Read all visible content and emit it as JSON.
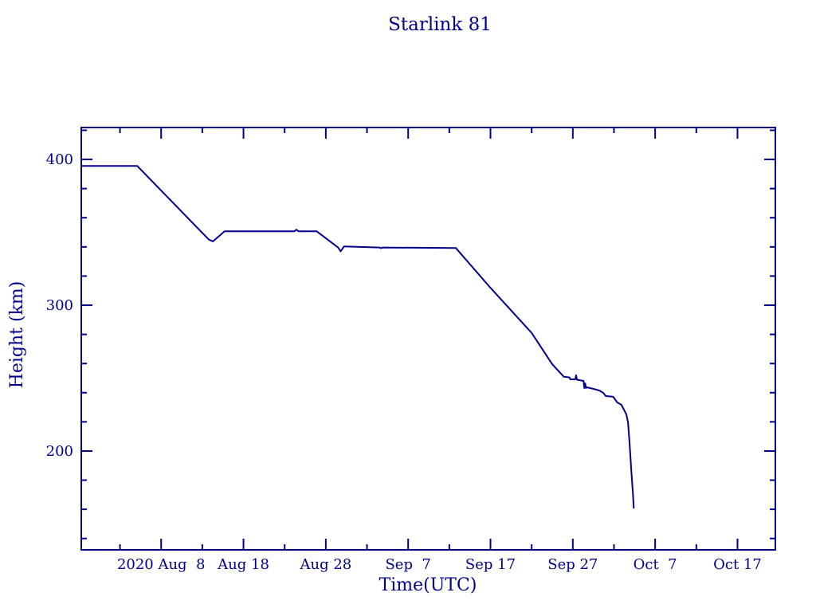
{
  "page": {
    "background": "#ffffff",
    "accent_color": "#00008b"
  },
  "chart_data": {
    "type": "line",
    "title": "Starlink 81",
    "xlabel": "Time(UTC)",
    "ylabel": "Height (km)",
    "line_color": "#00008b",
    "grid": false,
    "legend": "none",
    "x_unit": "days relative to 2020 Aug 8",
    "xlim": [
      -9.7,
      74.6
    ],
    "ylim": [
      132.2,
      421.9
    ],
    "x_major_ticks": [
      {
        "day": 0,
        "label": "2020 Aug  8"
      },
      {
        "day": 10,
        "label": "Aug 18"
      },
      {
        "day": 20,
        "label": "Aug 28"
      },
      {
        "day": 30,
        "label": "Sep  7"
      },
      {
        "day": 40,
        "label": "Sep 17"
      },
      {
        "day": 50,
        "label": "Sep 27"
      },
      {
        "day": 60,
        "label": "Oct  7"
      },
      {
        "day": 70,
        "label": "Oct 17"
      }
    ],
    "x_minor_ticks": [
      -5,
      5,
      15,
      25,
      35,
      45,
      55,
      65
    ],
    "y_major_ticks": [
      {
        "km": 400,
        "label": "400"
      },
      {
        "km": 300,
        "label": "300"
      },
      {
        "km": 200,
        "label": "200"
      }
    ],
    "y_minor_ticks": [
      420,
      380,
      360,
      340,
      320,
      280,
      260,
      240,
      220,
      180,
      160,
      140
    ],
    "series": [
      {
        "name": "Starlink 81 height",
        "points": [
          [
            -9.6,
            395.5
          ],
          [
            -2.9,
            395.5
          ],
          [
            5.8,
            345.0
          ],
          [
            6.3,
            343.8
          ],
          [
            7.7,
            350.7
          ],
          [
            16.2,
            350.7
          ],
          [
            16.4,
            351.8
          ],
          [
            16.7,
            350.7
          ],
          [
            18.9,
            350.7
          ],
          [
            21.5,
            339.5
          ],
          [
            21.8,
            336.9
          ],
          [
            22.2,
            340.3
          ],
          [
            26.5,
            339.6
          ],
          [
            26.7,
            339.1
          ],
          [
            26.9,
            339.6
          ],
          [
            35.8,
            339.2
          ],
          [
            39.9,
            312.5
          ],
          [
            45.0,
            281.0
          ],
          [
            47.5,
            259.5
          ],
          [
            48.9,
            251.0
          ],
          [
            49.6,
            250.5
          ],
          [
            49.7,
            249.2
          ],
          [
            50.3,
            249.2
          ],
          [
            50.4,
            251.9
          ],
          [
            50.5,
            248.9
          ],
          [
            51.3,
            248.1
          ],
          [
            51.4,
            243.2
          ],
          [
            51.5,
            246.4
          ],
          [
            51.6,
            243.2
          ],
          [
            51.7,
            243.7
          ],
          [
            52.5,
            242.6
          ],
          [
            53.2,
            241.5
          ],
          [
            53.7,
            239.9
          ],
          [
            54.0,
            237.7
          ],
          [
            54.9,
            237.2
          ],
          [
            55.4,
            233.3
          ],
          [
            55.9,
            231.7
          ],
          [
            56.2,
            228.4
          ],
          [
            56.5,
            225.1
          ],
          [
            56.7,
            219.7
          ],
          [
            56.9,
            204.9
          ],
          [
            57.1,
            186.9
          ],
          [
            57.3,
            170.5
          ],
          [
            57.4,
            161.0
          ]
        ]
      }
    ]
  }
}
